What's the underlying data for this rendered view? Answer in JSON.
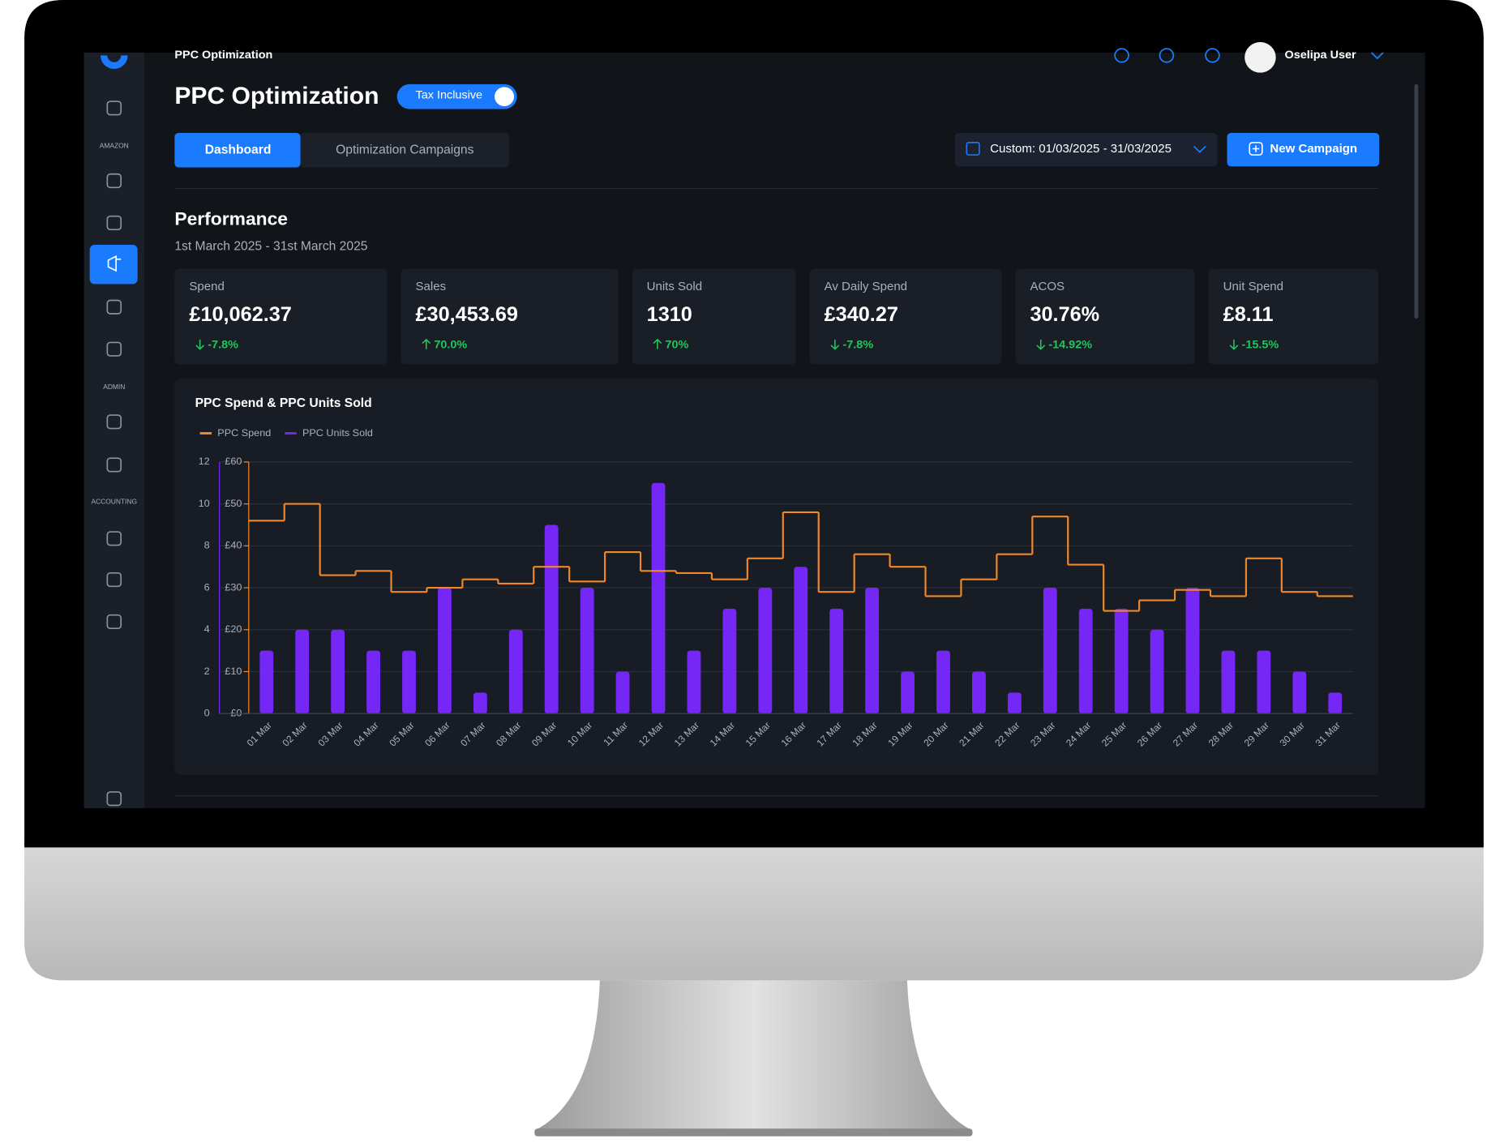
{
  "app": {
    "breadcrumb": "PPC Optimization",
    "user": "Oselipa User",
    "sidebar_sections": [
      "AMAZON",
      "ADMIN",
      "ACCOUNTING"
    ]
  },
  "header": {
    "title": "PPC Optimization",
    "toggle": "Tax Inclusive"
  },
  "tabs": [
    "Dashboard",
    "Optimization Campaigns"
  ],
  "date_range": "Custom: 01/03/2025 - 31/03/2025",
  "new_campaign": "New Campaign",
  "performance": {
    "title": "Performance",
    "subtitle": "1st March 2025 - 31st March 2025"
  },
  "kpis": [
    {
      "label": "Spend",
      "value": "£10,062.37",
      "change": "-7.8%"
    },
    {
      "label": "Sales",
      "value": "£30,453.69",
      "change": "70.0%"
    },
    {
      "label": "Units Sold",
      "value": "1310",
      "change": "70%"
    },
    {
      "label": "Av Daily Spend",
      "value": "£340.27",
      "change": "-7.8%"
    },
    {
      "label": "ACOS",
      "value": "30.76%",
      "change": "-14.92%"
    },
    {
      "label": "Unit Spend",
      "value": "£8.11",
      "change": "-15.5%"
    }
  ],
  "chart_data": {
    "type": "combo",
    "title": "PPC Spend & PPC Units Sold",
    "categories": [
      "01 Mar",
      "02 Mar",
      "03 Mar",
      "04 Mar",
      "05 Mar",
      "06 Mar",
      "07 Mar",
      "08 Mar",
      "09 Mar",
      "10 Mar",
      "11 Mar",
      "12 Mar",
      "13 Mar",
      "14 Mar",
      "15 Mar",
      "16 Mar",
      "17 Mar",
      "18 Mar",
      "19 Mar",
      "20 Mar",
      "21 Mar",
      "22 Mar",
      "23 Mar",
      "24 Mar",
      "25 Mar",
      "26 Mar",
      "27 Mar",
      "28 Mar",
      "29 Mar",
      "30 Mar",
      "31 Mar"
    ],
    "series": [
      {
        "name": "PPC Spend",
        "color": "#f0882a",
        "type": "step",
        "axis": "y2",
        "values": [
          46,
          50,
          33,
          34,
          29,
          30,
          32,
          31,
          35,
          31.5,
          38.5,
          34,
          33.5,
          32,
          37,
          48,
          29,
          38,
          35,
          28,
          32,
          38,
          47,
          35.5,
          24.5,
          27,
          29.5,
          28,
          37,
          29,
          28
        ]
      },
      {
        "name": "PPC Units Sold",
        "color": "#7427f5",
        "type": "bar",
        "values": [
          3,
          4,
          4,
          3,
          3,
          6,
          1,
          4,
          9,
          6,
          2,
          11,
          3,
          5,
          6,
          7,
          5,
          6,
          2,
          3,
          2,
          1,
          6,
          5,
          5,
          4,
          6,
          3,
          3,
          2,
          1
        ]
      }
    ],
    "ylim": [
      0,
      12
    ],
    "yticks": [
      0,
      2,
      4,
      6,
      8,
      10,
      12
    ],
    "y2lim": [
      0,
      60
    ],
    "y2ticks": [
      {
        "value": 0,
        "label": "£0"
      },
      {
        "value": 10,
        "label": "£10"
      },
      {
        "value": 20,
        "label": "£20"
      },
      {
        "value": 30,
        "label": "£30"
      },
      {
        "value": 40,
        "label": "£40"
      },
      {
        "value": 50,
        "label": "£50"
      },
      {
        "value": 60,
        "label": "£60"
      }
    ],
    "grid": true
  }
}
